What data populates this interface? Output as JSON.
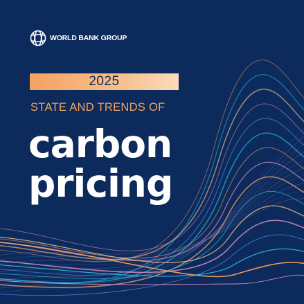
{
  "logo": {
    "text": "WORLD BANK GROUP",
    "icon": "globe-icon"
  },
  "cover": {
    "year": "2025",
    "subtitle": "STATE AND TRENDS OF",
    "title_line1": "carbon",
    "title_line2": "pricing"
  },
  "colors": {
    "background": "#0c2a5c",
    "accent_orange": "#f4a261",
    "accent_peach": "#f7c290",
    "wave_cyan": "#2ab8d8",
    "wave_blue": "#4a7fd1",
    "wave_pink": "#d98fc0",
    "text_white": "#ffffff"
  }
}
